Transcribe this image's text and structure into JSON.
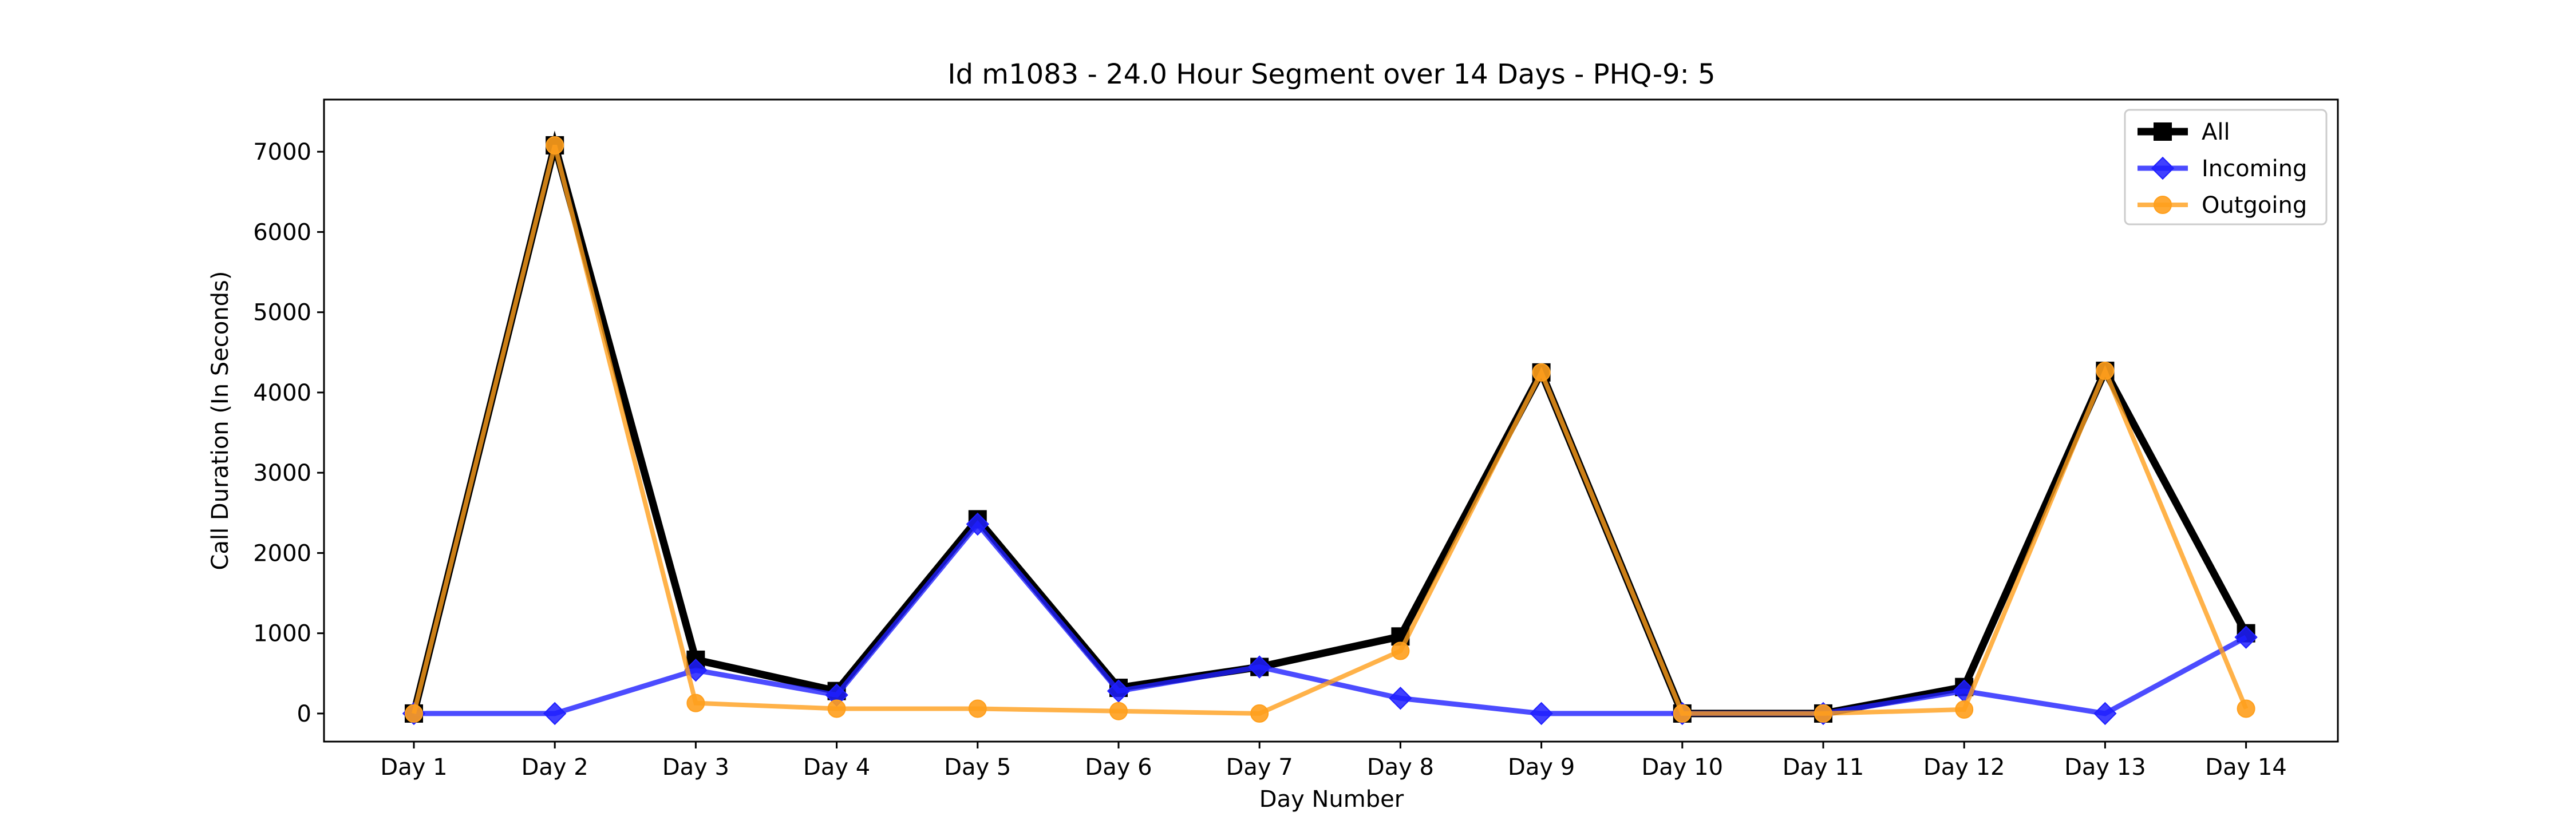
{
  "chart_data": {
    "type": "line",
    "title": "Id m1083 - 24.0 Hour Segment over 14 Days - PHQ-9: 5",
    "xlabel": "Day Number",
    "ylabel": "Call Duration (In Seconds)",
    "categories": [
      "Day 1",
      "Day 2",
      "Day 3",
      "Day 4",
      "Day 5",
      "Day 6",
      "Day 7",
      "Day 8",
      "Day 9",
      "Day 10",
      "Day 11",
      "Day 12",
      "Day 13",
      "Day 14"
    ],
    "ylim": [
      -350,
      7650
    ],
    "yticks": [
      0,
      1000,
      2000,
      3000,
      4000,
      5000,
      6000,
      7000
    ],
    "grid": false,
    "legend_position": "top-right",
    "series": [
      {
        "name": "All",
        "color": "#000000",
        "marker": "square",
        "values": [
          0,
          7080,
          670,
          280,
          2420,
          320,
          580,
          960,
          4250,
          0,
          0,
          330,
          4270,
          1000
        ]
      },
      {
        "name": "Incoming",
        "color": "#1f1fff",
        "marker": "diamond",
        "values": [
          0,
          0,
          540,
          230,
          2360,
          280,
          580,
          190,
          0,
          0,
          0,
          280,
          0,
          950
        ]
      },
      {
        "name": "Outgoing",
        "color": "#ff9f1c",
        "marker": "circle",
        "values": [
          0,
          7080,
          130,
          60,
          60,
          30,
          0,
          780,
          4250,
          0,
          0,
          50,
          4270,
          60
        ]
      }
    ]
  }
}
